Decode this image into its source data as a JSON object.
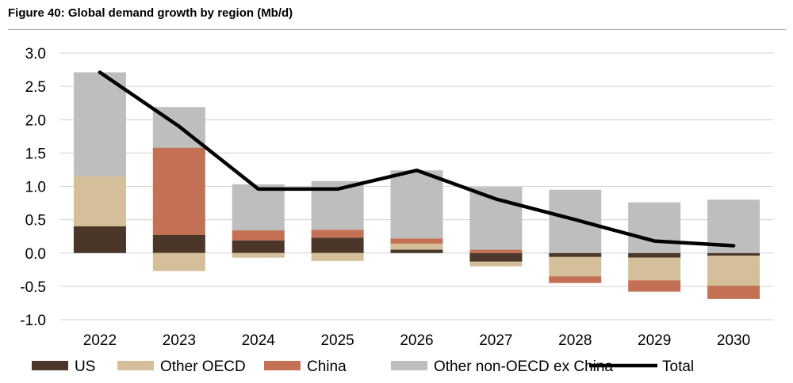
{
  "title": "Figure 40: Global demand growth by region (Mb/d)",
  "colors": {
    "us": "#4a3729",
    "other_oecd": "#d4bf9a",
    "china": "#c47055",
    "other_non_oecd": "#bebebe",
    "total": "#000000",
    "grid": "#d0d0d0"
  },
  "chart_data": {
    "type": "bar",
    "stacked": true,
    "title": "Figure 40: Global demand growth by region (Mb/d)",
    "xlabel": "",
    "ylabel": "",
    "ylim": [
      -1.0,
      3.0
    ],
    "yticks": [
      3.0,
      2.5,
      2.0,
      1.5,
      1.0,
      0.5,
      0.0,
      -0.5,
      -1.0
    ],
    "ytick_labels": [
      "3.0",
      "2.5",
      "2.0",
      "1.5",
      "1.0",
      "0.5",
      "0.0",
      "-0.5",
      "-1.0"
    ],
    "grid": true,
    "legend_position": "bottom",
    "categories": [
      "2022",
      "2023",
      "2024",
      "2025",
      "2026",
      "2027",
      "2028",
      "2029",
      "2030"
    ],
    "series": [
      {
        "name": "US",
        "key": "us",
        "type": "bar",
        "values": [
          0.4,
          0.27,
          0.19,
          0.23,
          0.05,
          -0.13,
          -0.06,
          -0.07,
          -0.04
        ]
      },
      {
        "name": "Other OECD",
        "key": "other_oecd",
        "type": "bar",
        "values": [
          0.75,
          -0.27,
          -0.07,
          -0.12,
          0.09,
          -0.07,
          -0.29,
          -0.34,
          -0.45
        ]
      },
      {
        "name": "China",
        "key": "china",
        "type": "bar",
        "values": [
          0.0,
          1.31,
          0.15,
          0.12,
          0.08,
          0.05,
          -0.1,
          -0.17,
          -0.2
        ]
      },
      {
        "name": "Other non-OECD ex China",
        "key": "other_non_oecd",
        "type": "bar",
        "values": [
          1.56,
          0.61,
          0.69,
          0.73,
          1.02,
          0.94,
          0.95,
          0.76,
          0.8
        ]
      },
      {
        "name": "Total",
        "key": "total",
        "type": "line",
        "values": [
          2.71,
          1.9,
          0.96,
          0.96,
          1.24,
          0.81,
          0.5,
          0.18,
          0.11
        ]
      }
    ]
  }
}
